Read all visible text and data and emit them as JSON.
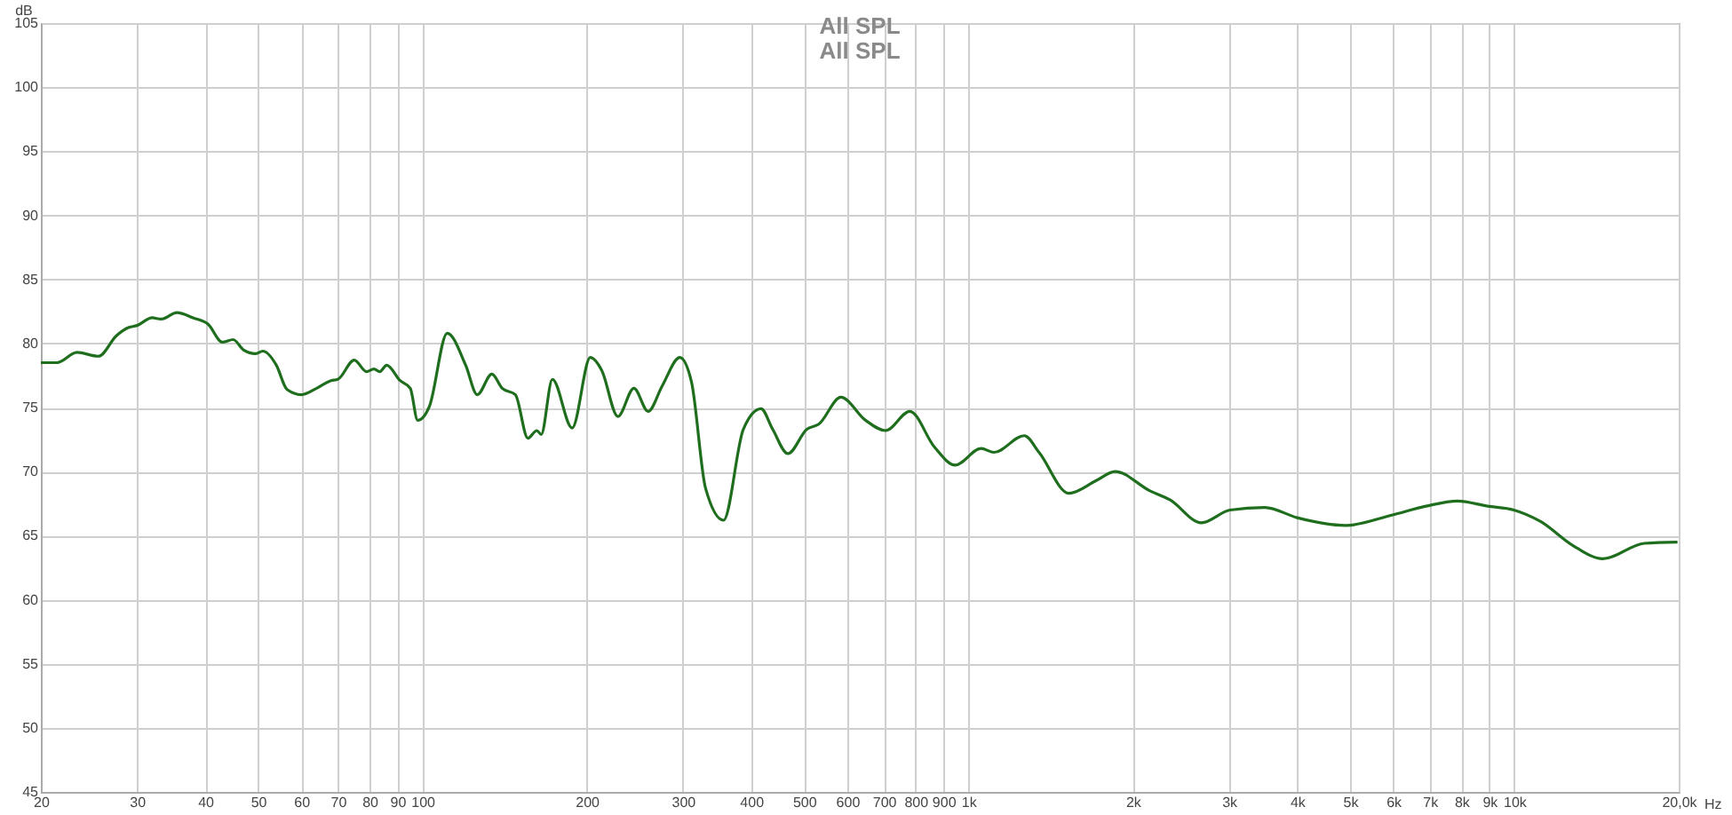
{
  "chart_data": {
    "type": "line",
    "title": "All SPL",
    "subtitle": "All SPL",
    "xlabel": "Hz",
    "ylabel": "dB",
    "log": "x",
    "grid": true,
    "xlim": [
      20,
      20000
    ],
    "ylim": [
      45,
      105
    ],
    "xticks": [
      20,
      30,
      40,
      50,
      60,
      70,
      80,
      90,
      100,
      200,
      300,
      400,
      500,
      600,
      700,
      800,
      900,
      {
        "value": 1000,
        "label": "1k"
      },
      {
        "value": 2000,
        "label": "2k"
      },
      {
        "value": 3000,
        "label": "3k"
      },
      {
        "value": 4000,
        "label": "4k"
      },
      {
        "value": 5000,
        "label": "5k"
      },
      {
        "value": 6000,
        "label": "6k"
      },
      {
        "value": 7000,
        "label": "7k"
      },
      {
        "value": 8000,
        "label": "8k"
      },
      {
        "value": 9000,
        "label": "9k"
      },
      {
        "value": 10000,
        "label": "10k"
      },
      {
        "value": 20000,
        "label": "20,0k"
      }
    ],
    "yticks": [
      45,
      50,
      55,
      60,
      65,
      70,
      75,
      80,
      85,
      90,
      95,
      100,
      105
    ],
    "series": [
      {
        "color": "#1e6e1e",
        "x": [
          20,
          21.4,
          23.3,
          25.5,
          27.5,
          28.8,
          30,
          32,
          33.2,
          35.5,
          38,
          40.5,
          43,
          45,
          47,
          49.5,
          51,
          54,
          56.5,
          60,
          64,
          68,
          70,
          75,
          79,
          81.5,
          83.5,
          86,
          91,
          95,
          98,
          103,
          111,
          120,
          126,
          134,
          140,
          148,
          156,
          162,
          165,
          173,
          188,
          203,
          213,
          228,
          244,
          259,
          275,
          296,
          311,
          330,
          356,
          387,
          417,
          438,
          467,
          506,
          532,
          584,
          648,
          705,
          781,
          867,
          945,
          1055,
          1114,
          1266,
          1347,
          1528,
          1715,
          1856,
          2150,
          2339,
          2672,
          3013,
          3492,
          4000,
          4913,
          5960,
          6887,
          7873,
          8929,
          9980,
          11170,
          12830,
          14520,
          17300,
          19900
        ],
        "values": [
          78.5,
          78.5,
          79.3,
          79.0,
          80.6,
          81.2,
          81.4,
          82.0,
          81.9,
          82.4,
          82.0,
          81.5,
          80.1,
          80.3,
          79.5,
          79.2,
          79.4,
          78.3,
          76.4,
          76.0,
          76.5,
          77.1,
          77.2,
          78.7,
          77.8,
          78.0,
          77.8,
          78.3,
          77.1,
          76.5,
          74.0,
          75.1,
          80.8,
          78.3,
          76.0,
          77.6,
          76.5,
          76.0,
          72.6,
          73.2,
          72.9,
          77.2,
          73.4,
          78.9,
          77.9,
          74.3,
          76.5,
          74.7,
          76.7,
          78.9,
          77.0,
          68.7,
          66.2,
          73.3,
          74.9,
          73.3,
          71.4,
          73.3,
          73.7,
          75.8,
          74.0,
          73.2,
          74.7,
          71.9,
          70.5,
          71.8,
          71.5,
          72.8,
          71.5,
          68.3,
          69.3,
          70.0,
          68.5,
          67.8,
          66.0,
          67.0,
          67.2,
          66.4,
          65.8,
          66.6,
          67.3,
          67.7,
          67.3,
          67.0,
          66.1,
          64.2,
          63.2,
          64.4,
          64.5
        ]
      }
    ]
  }
}
